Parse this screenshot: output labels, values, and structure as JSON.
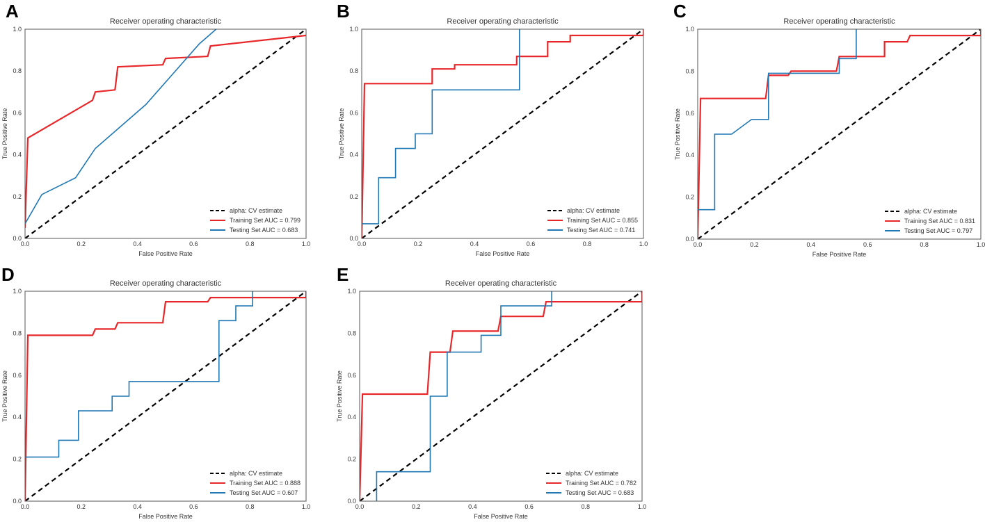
{
  "chart_data": [
    {
      "panel": "A",
      "type": "line",
      "title": "Receiver operating characteristic",
      "xlabel": "False Positive Rate",
      "ylabel": "True Positive Rate",
      "xlim": [
        0,
        1
      ],
      "ylim": [
        0,
        1
      ],
      "xticks": [
        "0.0",
        "0.2",
        "0.4",
        "0.6",
        "0.8",
        "1.0"
      ],
      "yticks": [
        "0.0",
        "0.2",
        "0.4",
        "0.6",
        "0.8",
        "1.0"
      ],
      "legend_position": "lower-right",
      "series": [
        {
          "name": "alpha: CV estimate",
          "label": "alpha: CV estimate",
          "color": "#000000",
          "style": "dashed",
          "points": [
            [
              0,
              0
            ],
            [
              1,
              1
            ]
          ]
        },
        {
          "name": "Training Set",
          "label": "Training Set AUC = 0.799",
          "color": "#e8272a",
          "style": "solid",
          "points": [
            [
              0,
              0.05
            ],
            [
              0.01,
              0.48
            ],
            [
              0.24,
              0.66
            ],
            [
              0.25,
              0.7
            ],
            [
              0.32,
              0.71
            ],
            [
              0.33,
              0.82
            ],
            [
              0.49,
              0.83
            ],
            [
              0.5,
              0.86
            ],
            [
              0.65,
              0.87
            ],
            [
              0.66,
              0.92
            ],
            [
              1,
              0.97
            ]
          ]
        },
        {
          "name": "Testing Set",
          "label": "Testing Set AUC = 0.683",
          "color": "#1f77b4",
          "style": "solid",
          "points": [
            [
              0,
              0.07
            ],
            [
              0.06,
              0.21
            ],
            [
              0.18,
              0.29
            ],
            [
              0.25,
              0.43
            ],
            [
              0.43,
              0.64
            ],
            [
              0.62,
              0.93
            ],
            [
              0.68,
              1.0
            ]
          ]
        }
      ]
    },
    {
      "panel": "B",
      "type": "line",
      "title": "Receiver operating characteristic",
      "xlabel": "False Positive Rate",
      "ylabel": "True Positive Rate",
      "xlim": [
        0,
        1
      ],
      "ylim": [
        0,
        1
      ],
      "xticks": [
        "0.0",
        "0.2",
        "0.4",
        "0.6",
        "0.8",
        "1.0"
      ],
      "yticks": [
        "0.0",
        "0.2",
        "0.4",
        "0.6",
        "0.8",
        "1.0"
      ],
      "legend_position": "lower-right",
      "series": [
        {
          "name": "alpha: CV estimate",
          "label": "alpha: CV estimate",
          "color": "#000000",
          "style": "dashed",
          "points": [
            [
              0,
              0
            ],
            [
              1,
              1
            ]
          ]
        },
        {
          "name": "Training Set",
          "label": "Training Set AUC = 0.855",
          "color": "#e8272a",
          "style": "solid",
          "points": [
            [
              0,
              0
            ],
            [
              0.01,
              0.74
            ],
            [
              0.25,
              0.74
            ],
            [
              0.25,
              0.81
            ],
            [
              0.33,
              0.81
            ],
            [
              0.33,
              0.83
            ],
            [
              0.55,
              0.83
            ],
            [
              0.55,
              0.87
            ],
            [
              0.66,
              0.87
            ],
            [
              0.66,
              0.94
            ],
            [
              0.74,
              0.94
            ],
            [
              0.74,
              0.97
            ],
            [
              1,
              0.97
            ],
            [
              1,
              1
            ]
          ]
        },
        {
          "name": "Testing Set",
          "label": "Testing Set AUC = 0.741",
          "color": "#1f77b4",
          "style": "solid",
          "points": [
            [
              0,
              0.07
            ],
            [
              0.06,
              0.07
            ],
            [
              0.06,
              0.29
            ],
            [
              0.12,
              0.29
            ],
            [
              0.12,
              0.43
            ],
            [
              0.19,
              0.43
            ],
            [
              0.19,
              0.5
            ],
            [
              0.25,
              0.5
            ],
            [
              0.25,
              0.71
            ],
            [
              0.56,
              0.71
            ],
            [
              0.56,
              1.0
            ]
          ]
        }
      ]
    },
    {
      "panel": "C",
      "type": "line",
      "title": "Receiver operating characteristic",
      "xlabel": "False Positive Rate",
      "ylabel": "True Positive Rate",
      "xlim": [
        0,
        1
      ],
      "ylim": [
        0,
        1
      ],
      "xticks": [
        "0.0",
        "0.2",
        "0.4",
        "0.6",
        "0.8",
        "1.0"
      ],
      "yticks": [
        "0.0",
        "0.2",
        "0.4",
        "0.6",
        "0.8",
        "1.0"
      ],
      "legend_position": "lower-right",
      "series": [
        {
          "name": "alpha: CV estimate",
          "label": "alpha: CV estimate",
          "color": "#000000",
          "style": "dashed",
          "points": [
            [
              0,
              0
            ],
            [
              1,
              1
            ]
          ]
        },
        {
          "name": "Training Set",
          "label": "Training Set AUC = 0.831",
          "color": "#e8272a",
          "style": "solid",
          "points": [
            [
              0,
              0
            ],
            [
              0.01,
              0.67
            ],
            [
              0.24,
              0.67
            ],
            [
              0.25,
              0.78
            ],
            [
              0.32,
              0.78
            ],
            [
              0.33,
              0.8
            ],
            [
              0.49,
              0.8
            ],
            [
              0.5,
              0.87
            ],
            [
              0.66,
              0.87
            ],
            [
              0.66,
              0.94
            ],
            [
              0.74,
              0.94
            ],
            [
              0.75,
              0.97
            ],
            [
              1,
              0.97
            ],
            [
              1,
              1
            ]
          ]
        },
        {
          "name": "Testing Set",
          "label": "Testing Set AUC = 0.797",
          "color": "#1f77b4",
          "style": "solid",
          "points": [
            [
              0,
              0.14
            ],
            [
              0.06,
              0.14
            ],
            [
              0.06,
              0.5
            ],
            [
              0.12,
              0.5
            ],
            [
              0.19,
              0.57
            ],
            [
              0.25,
              0.57
            ],
            [
              0.25,
              0.79
            ],
            [
              0.5,
              0.79
            ],
            [
              0.5,
              0.86
            ],
            [
              0.56,
              0.86
            ],
            [
              0.56,
              1.0
            ]
          ]
        }
      ]
    },
    {
      "panel": "D",
      "type": "line",
      "title": "Receiver operating characteristic",
      "xlabel": "False Positive Rate",
      "ylabel": "True Positive Rate",
      "xlim": [
        0,
        1
      ],
      "ylim": [
        0,
        1
      ],
      "xticks": [
        "0.0",
        "0.2",
        "0.4",
        "0.6",
        "0.8",
        "1.0"
      ],
      "yticks": [
        "0.0",
        "0.2",
        "0.4",
        "0.6",
        "0.8",
        "1.0"
      ],
      "legend_position": "lower-right",
      "series": [
        {
          "name": "alpha: CV estimate",
          "label": "alpha: CV estimate",
          "color": "#000000",
          "style": "dashed",
          "points": [
            [
              0,
              0
            ],
            [
              1,
              1
            ]
          ]
        },
        {
          "name": "Training Set",
          "label": "Training Set AUC = 0.888",
          "color": "#e8272a",
          "style": "solid",
          "points": [
            [
              0,
              0
            ],
            [
              0.01,
              0.79
            ],
            [
              0.24,
              0.79
            ],
            [
              0.25,
              0.82
            ],
            [
              0.32,
              0.82
            ],
            [
              0.33,
              0.85
            ],
            [
              0.49,
              0.85
            ],
            [
              0.5,
              0.95
            ],
            [
              0.65,
              0.95
            ],
            [
              0.66,
              0.97
            ],
            [
              1,
              0.97
            ],
            [
              1,
              1
            ]
          ]
        },
        {
          "name": "Testing Set",
          "label": "Testing Set AUC = 0.607",
          "color": "#1f77b4",
          "style": "solid",
          "points": [
            [
              0,
              0.21
            ],
            [
              0.12,
              0.21
            ],
            [
              0.12,
              0.29
            ],
            [
              0.19,
              0.29
            ],
            [
              0.19,
              0.43
            ],
            [
              0.31,
              0.43
            ],
            [
              0.31,
              0.5
            ],
            [
              0.37,
              0.5
            ],
            [
              0.37,
              0.57
            ],
            [
              0.69,
              0.57
            ],
            [
              0.69,
              0.86
            ],
            [
              0.75,
              0.86
            ],
            [
              0.75,
              0.93
            ],
            [
              0.81,
              0.93
            ],
            [
              0.81,
              1.0
            ]
          ]
        }
      ]
    },
    {
      "panel": "E",
      "type": "line",
      "title": "Receiver operating characteristic",
      "xlabel": "False Positive Rate",
      "ylabel": "True Positive Rate",
      "xlim": [
        0,
        1
      ],
      "ylim": [
        0,
        1
      ],
      "xticks": [
        "0.0",
        "0.2",
        "0.4",
        "0.6",
        "0.8",
        "1.0"
      ],
      "yticks": [
        "0.0",
        "0.2",
        "0.4",
        "0.6",
        "0.8",
        "1.0"
      ],
      "legend_position": "lower-right",
      "series": [
        {
          "name": "alpha: CV estimate",
          "label": "alpha: CV estimate",
          "color": "#000000",
          "style": "dashed",
          "points": [
            [
              0,
              0
            ],
            [
              1,
              1
            ]
          ]
        },
        {
          "name": "Training Set",
          "label": "Training Set AUC = 0.782",
          "color": "#e8272a",
          "style": "solid",
          "points": [
            [
              0,
              0
            ],
            [
              0.01,
              0.51
            ],
            [
              0.24,
              0.51
            ],
            [
              0.25,
              0.71
            ],
            [
              0.32,
              0.71
            ],
            [
              0.33,
              0.81
            ],
            [
              0.49,
              0.81
            ],
            [
              0.5,
              0.88
            ],
            [
              0.65,
              0.88
            ],
            [
              0.66,
              0.95
            ],
            [
              1,
              0.95
            ],
            [
              1,
              1
            ]
          ]
        },
        {
          "name": "Testing Set",
          "label": "Testing Set AUC = 0.683",
          "color": "#1f77b4",
          "style": "solid",
          "points": [
            [
              0.06,
              0
            ],
            [
              0.06,
              0.14
            ],
            [
              0.25,
              0.14
            ],
            [
              0.25,
              0.5
            ],
            [
              0.31,
              0.5
            ],
            [
              0.31,
              0.71
            ],
            [
              0.43,
              0.71
            ],
            [
              0.43,
              0.79
            ],
            [
              0.5,
              0.79
            ],
            [
              0.5,
              0.93
            ],
            [
              0.68,
              0.93
            ],
            [
              0.68,
              1.0
            ]
          ]
        }
      ]
    }
  ]
}
